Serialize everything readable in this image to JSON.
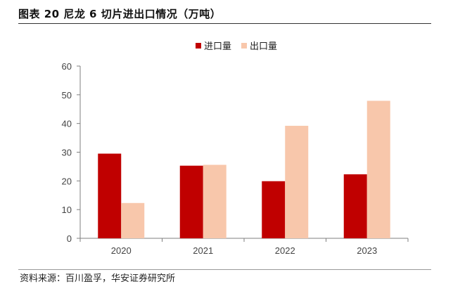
{
  "figure": {
    "title": "图表 20 尼龙 6 切片进出口情况（万吨）",
    "source": "资料来源：百川盈孚，华安证券研究所"
  },
  "colors": {
    "import": "#c00000",
    "export": "#f8c7ab",
    "axis": "#7f7f7f",
    "title_rule": "#333333"
  },
  "chart_data": {
    "type": "bar",
    "title": "图表 20 尼龙 6 切片进出口情况（万吨）",
    "xlabel": "",
    "ylabel": "",
    "categories": [
      "2020",
      "2021",
      "2022",
      "2023"
    ],
    "series": [
      {
        "name": "进口量",
        "values": [
          29.5,
          25.3,
          19.9,
          22.3
        ]
      },
      {
        "name": "出口量",
        "values": [
          12.3,
          25.6,
          39.2,
          47.9
        ]
      }
    ],
    "ylim": [
      0,
      60
    ],
    "yticks": [
      0,
      10,
      20,
      30,
      40,
      50,
      60
    ],
    "grid": false,
    "legend_position": "top-center"
  }
}
